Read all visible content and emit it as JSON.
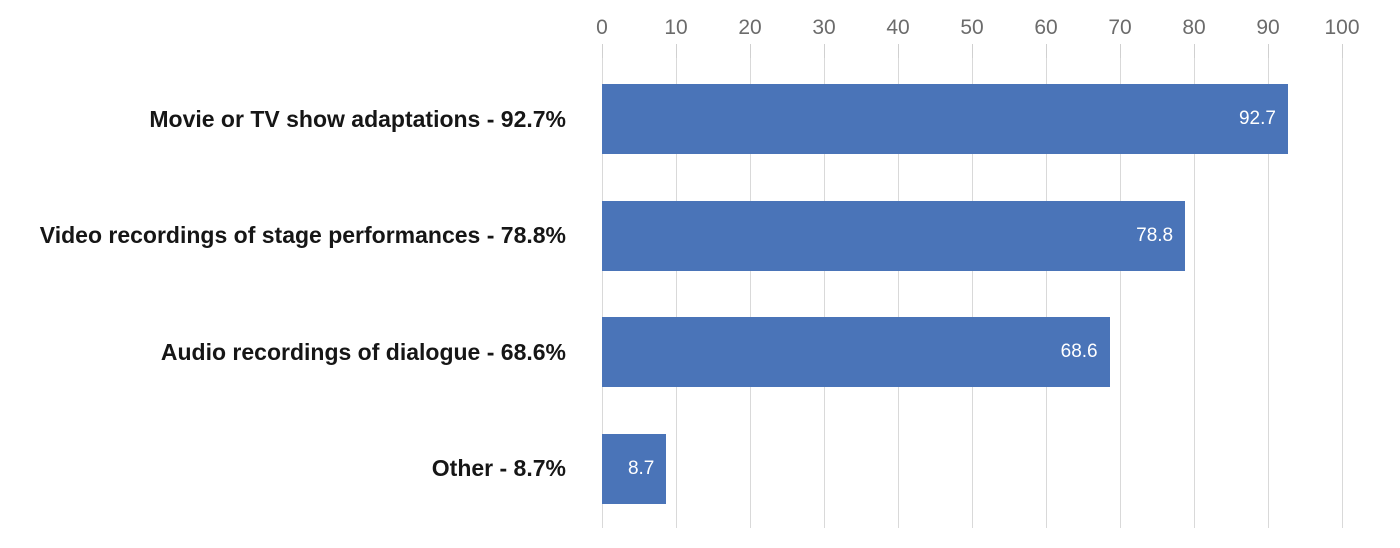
{
  "chart_data": {
    "type": "bar",
    "orientation": "horizontal",
    "title": "",
    "xlabel": "",
    "ylabel": "",
    "axis_position": "top",
    "grid": true,
    "xlim": [
      0,
      100
    ],
    "x_ticks": [
      "0",
      "10",
      "20",
      "30",
      "40",
      "50",
      "60",
      "70",
      "80",
      "90",
      "100"
    ],
    "categories": [
      "Movie or TV show adaptations - 92.7%",
      "Video recordings of stage performances - 78.8%",
      "Audio recordings of dialogue - 68.6%",
      "Other - 8.7%"
    ],
    "values": [
      92.7,
      78.8,
      68.6,
      8.7
    ],
    "bar_labels": [
      "92.7",
      "78.8",
      "68.6",
      "8.7"
    ],
    "colors": {
      "bar": "#4a74b8",
      "gridline": "#d9d9d9",
      "tick_mark": "#d0d0d0",
      "tick_label": "#6b6b6b",
      "category_label": "#161616",
      "value_label": "#ffffff",
      "background": "#ffffff"
    }
  }
}
